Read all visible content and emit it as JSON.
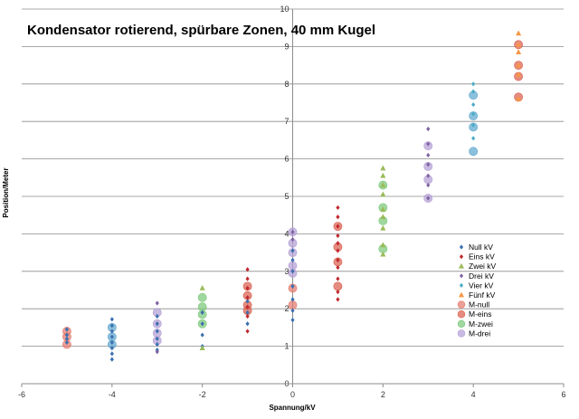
{
  "chart_data": {
    "type": "scatter",
    "title": "Kondensator rotierend, spürbare Zonen, 40 mm Kugel",
    "xlabel": "Spannung/kV",
    "ylabel": "Position/Meter",
    "xlim": [
      -6,
      6
    ],
    "ylim": [
      0,
      10
    ],
    "xticks": [
      -6,
      -4,
      -2,
      0,
      2,
      4,
      6
    ],
    "yticks": [
      0,
      1,
      2,
      3,
      4,
      5,
      6,
      7,
      8,
      9,
      10
    ],
    "grid": "horizontal",
    "legend_position": "right",
    "series": [
      {
        "name": "Null kV",
        "marker": "diamond-small",
        "color": "#3b6eb0",
        "points": [
          [
            -5,
            1.1
          ],
          [
            -5,
            1.2
          ],
          [
            -5,
            1.3
          ],
          [
            -5,
            1.45
          ],
          [
            -4,
            0.65
          ],
          [
            -4,
            0.8
          ],
          [
            -4,
            0.95
          ],
          [
            -4,
            1.1
          ],
          [
            -4,
            1.25
          ],
          [
            -4,
            1.4
          ],
          [
            -4,
            1.55
          ],
          [
            -4,
            1.72
          ],
          [
            -3,
            0.9
          ],
          [
            -3,
            1.05
          ],
          [
            -3,
            1.2
          ],
          [
            -3,
            1.4
          ],
          [
            -3,
            1.6
          ],
          [
            -3,
            1.8
          ],
          [
            -2,
            1.0
          ],
          [
            -2,
            1.3
          ],
          [
            -2,
            1.6
          ],
          [
            -2,
            1.9
          ],
          [
            -1,
            1.6
          ],
          [
            -1,
            1.9
          ],
          [
            -1,
            2.2
          ],
          [
            0,
            1.7
          ],
          [
            0,
            1.95
          ],
          [
            0,
            2.25
          ],
          [
            0,
            2.6
          ],
          [
            0,
            3.0
          ],
          [
            0,
            3.3
          ],
          [
            0,
            3.55
          ]
        ]
      },
      {
        "name": "Eins kV",
        "marker": "diamond-small",
        "color": "#c0272d",
        "points": [
          [
            -1,
            1.4
          ],
          [
            -1,
            1.8
          ],
          [
            -1,
            2.05
          ],
          [
            -1,
            2.3
          ],
          [
            -1,
            2.55
          ],
          [
            -1,
            2.8
          ],
          [
            -1,
            3.05
          ],
          [
            1,
            2.25
          ],
          [
            1,
            2.45
          ],
          [
            1,
            2.8
          ],
          [
            1,
            3.1
          ],
          [
            1,
            3.3
          ],
          [
            1,
            3.55
          ],
          [
            1,
            3.75
          ],
          [
            1,
            3.95
          ],
          [
            1,
            4.2
          ],
          [
            1,
            4.45
          ],
          [
            1,
            4.7
          ]
        ]
      },
      {
        "name": "Zwei kV",
        "marker": "triangle",
        "color": "#9bbb59",
        "points": [
          [
            -2,
            0.95
          ],
          [
            -2,
            2.55
          ],
          [
            2,
            3.45
          ],
          [
            2,
            3.7
          ],
          [
            2,
            4.15
          ],
          [
            2,
            4.45
          ],
          [
            2,
            4.65
          ],
          [
            2,
            5.05
          ],
          [
            2,
            5.3
          ],
          [
            2,
            5.55
          ],
          [
            2,
            5.75
          ]
        ]
      },
      {
        "name": "Drei kV",
        "marker": "diamond-small",
        "color": "#7f63a1",
        "points": [
          [
            -3,
            0.85
          ],
          [
            -3,
            2.15
          ],
          [
            0,
            3.85
          ],
          [
            0,
            4.05
          ],
          [
            3,
            4.95
          ],
          [
            3,
            5.3
          ],
          [
            3,
            5.55
          ],
          [
            3,
            5.85
          ],
          [
            3,
            6.1
          ],
          [
            3,
            6.4
          ],
          [
            3,
            6.8
          ]
        ]
      },
      {
        "name": "Vier kV",
        "marker": "diamond-small",
        "color": "#4bacc6",
        "points": [
          [
            4,
            6.55
          ],
          [
            4,
            6.9
          ],
          [
            4,
            7.2
          ],
          [
            4,
            7.45
          ],
          [
            4,
            7.8
          ],
          [
            4,
            8.0
          ]
        ]
      },
      {
        "name": "Fünf kV",
        "marker": "triangle",
        "color": "#f79646",
        "points": [
          [
            5,
            7.6
          ],
          [
            5,
            8.25
          ],
          [
            5,
            8.5
          ],
          [
            5,
            8.85
          ],
          [
            5,
            9.05
          ],
          [
            5,
            9.35
          ]
        ]
      },
      {
        "name": "M-null",
        "marker": "circle",
        "color": "#e47a6e",
        "points": [
          [
            -5,
            1.05
          ],
          [
            -5,
            1.25
          ],
          [
            -5,
            1.4
          ],
          [
            0,
            2.1
          ],
          [
            0,
            2.55
          ]
        ]
      },
      {
        "name": "M-eins",
        "marker": "circle",
        "color": "#d95f4f",
        "points": [
          [
            -1,
            1.95
          ],
          [
            -1,
            2.1
          ],
          [
            -1,
            2.35
          ],
          [
            -1,
            2.6
          ],
          [
            1,
            2.6
          ],
          [
            1,
            3.25
          ],
          [
            1,
            3.65
          ],
          [
            1,
            4.2
          ],
          [
            5,
            7.65
          ],
          [
            5,
            8.2
          ],
          [
            5,
            8.5
          ],
          [
            5,
            9.05
          ]
        ]
      },
      {
        "name": "M-zwei",
        "marker": "circle",
        "color": "#7cc97a",
        "points": [
          [
            -2,
            1.6
          ],
          [
            -2,
            1.85
          ],
          [
            -2,
            2.05
          ],
          [
            -2,
            2.3
          ],
          [
            2,
            3.6
          ],
          [
            2,
            4.35
          ],
          [
            2,
            4.7
          ],
          [
            2,
            5.3
          ]
        ]
      },
      {
        "name": "M-drei",
        "marker": "circle",
        "color": "#b49fd6",
        "points": [
          [
            -3,
            1.15
          ],
          [
            -3,
            1.35
          ],
          [
            -3,
            1.6
          ],
          [
            -3,
            1.9
          ],
          [
            0,
            2.95
          ],
          [
            0,
            3.15
          ],
          [
            0,
            3.5
          ],
          [
            0,
            3.75
          ],
          [
            0,
            4.05
          ],
          [
            3,
            4.95
          ],
          [
            3,
            5.45
          ],
          [
            3,
            5.8
          ],
          [
            3,
            6.35
          ]
        ]
      },
      {
        "name": "",
        "marker": "circle",
        "color": "#5fa8cf",
        "points": [
          [
            -4,
            1.05
          ],
          [
            -4,
            1.25
          ],
          [
            -4,
            1.5
          ],
          [
            4,
            6.2
          ],
          [
            4,
            6.85
          ],
          [
            4,
            7.15
          ],
          [
            4,
            7.7
          ]
        ]
      }
    ]
  }
}
